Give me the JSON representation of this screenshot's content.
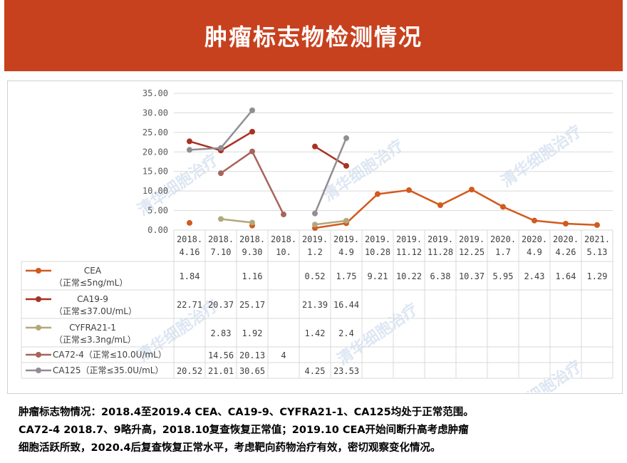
{
  "header": {
    "title": "肿瘤标志物检测情况"
  },
  "colors": {
    "header_bg": "#c8411e",
    "grid": "#d9d9d9",
    "axis_text": "#595959"
  },
  "watermark": "清华细胞治疗",
  "chart_data": {
    "type": "line",
    "categories": [
      [
        "2018.",
        "4.16"
      ],
      [
        "2018.",
        "7.10"
      ],
      [
        "2018.",
        "9.30"
      ],
      [
        "2018.",
        "10."
      ],
      [
        "2019.",
        "1.2"
      ],
      [
        "2019.",
        "4.9"
      ],
      [
        "2019.",
        "10.28"
      ],
      [
        "2019.",
        "11.12"
      ],
      [
        "2019.",
        "11.28"
      ],
      [
        "2019.",
        "12.25"
      ],
      [
        "2020.",
        "1.7"
      ],
      [
        "2020.",
        "4.9"
      ],
      [
        "2020.",
        "4.26"
      ],
      [
        "2021.",
        "5.13"
      ]
    ],
    "ylim": [
      0,
      35
    ],
    "yticks": [
      "0.00",
      "5.00",
      "10.00",
      "15.00",
      "20.00",
      "25.00",
      "30.00",
      "35.00"
    ],
    "ytick_values": [
      0,
      5,
      10,
      15,
      20,
      25,
      30,
      35
    ],
    "grid": true,
    "legend": "data-table-left",
    "series": [
      {
        "name": [
          "CEA",
          "（正常≤5ng/mL）"
        ],
        "color": "#d35a1e",
        "values": [
          1.84,
          null,
          1.16,
          null,
          0.52,
          1.75,
          9.21,
          10.22,
          6.38,
          10.37,
          5.95,
          2.43,
          1.64,
          1.29
        ],
        "labels": [
          "1.84",
          "",
          "1.16",
          "",
          "0.52",
          "1.75",
          "9.21",
          "10.22",
          "6.38",
          "10.37",
          "5.95",
          "2.43",
          "1.64",
          "1.29"
        ]
      },
      {
        "name": [
          "CA19-9",
          "（正常≤37.0U/mL）"
        ],
        "color": "#a83224",
        "values": [
          22.71,
          20.37,
          25.17,
          null,
          21.39,
          16.44,
          null,
          null,
          null,
          null,
          null,
          null,
          null,
          null
        ],
        "labels": [
          "22.71",
          "20.37",
          "25.17",
          "",
          "21.39",
          "16.44",
          "",
          "",
          "",
          "",
          "",
          "",
          "",
          ""
        ]
      },
      {
        "name": [
          "CYFRA21-1",
          "（正常≤3.3ng/mL）"
        ],
        "color": "#b3a77c",
        "values": [
          null,
          2.83,
          1.92,
          null,
          1.42,
          2.4,
          null,
          null,
          null,
          null,
          null,
          null,
          null,
          null
        ],
        "labels": [
          "",
          "2.83",
          "1.92",
          "",
          "1.42",
          "2.4",
          "",
          "",
          "",
          "",
          "",
          "",
          "",
          ""
        ]
      },
      {
        "name": [
          "CA72-4（正常≤10.0U/mL）"
        ],
        "color": "#a6645a",
        "values": [
          null,
          14.56,
          20.13,
          4,
          null,
          null,
          null,
          null,
          null,
          null,
          null,
          null,
          null,
          null
        ],
        "labels": [
          "",
          "14.56",
          "20.13",
          "4",
          "",
          "",
          "",
          "",
          "",
          "",
          "",
          "",
          "",
          ""
        ]
      },
      {
        "name": [
          "CA125（正常≤35.0U/mL）"
        ],
        "color": "#928c93",
        "values": [
          20.52,
          21.01,
          30.65,
          null,
          4.25,
          23.53,
          null,
          null,
          null,
          null,
          null,
          null,
          null,
          null
        ],
        "labels": [
          "20.52",
          "21.01",
          "30.65",
          "",
          "4.25",
          "23.53",
          "",
          "",
          "",
          "",
          "",
          "",
          "",
          ""
        ]
      }
    ]
  },
  "summary": {
    "line1": "肿瘤标志物情况：2018.4至2019.4 CEA、CA19-9、CYFRA21-1、CA125均处于正常范围。",
    "line2": "CA72-4 2018.7、9略升高，2018.10复查恢复正常值；2019.10 CEA开始间断升高考虑肿瘤",
    "line3": "细胞活跃所致，2020.4后复查恢复正常水平，考虑靶向药物治疗有效，密切观察变化情况。"
  }
}
